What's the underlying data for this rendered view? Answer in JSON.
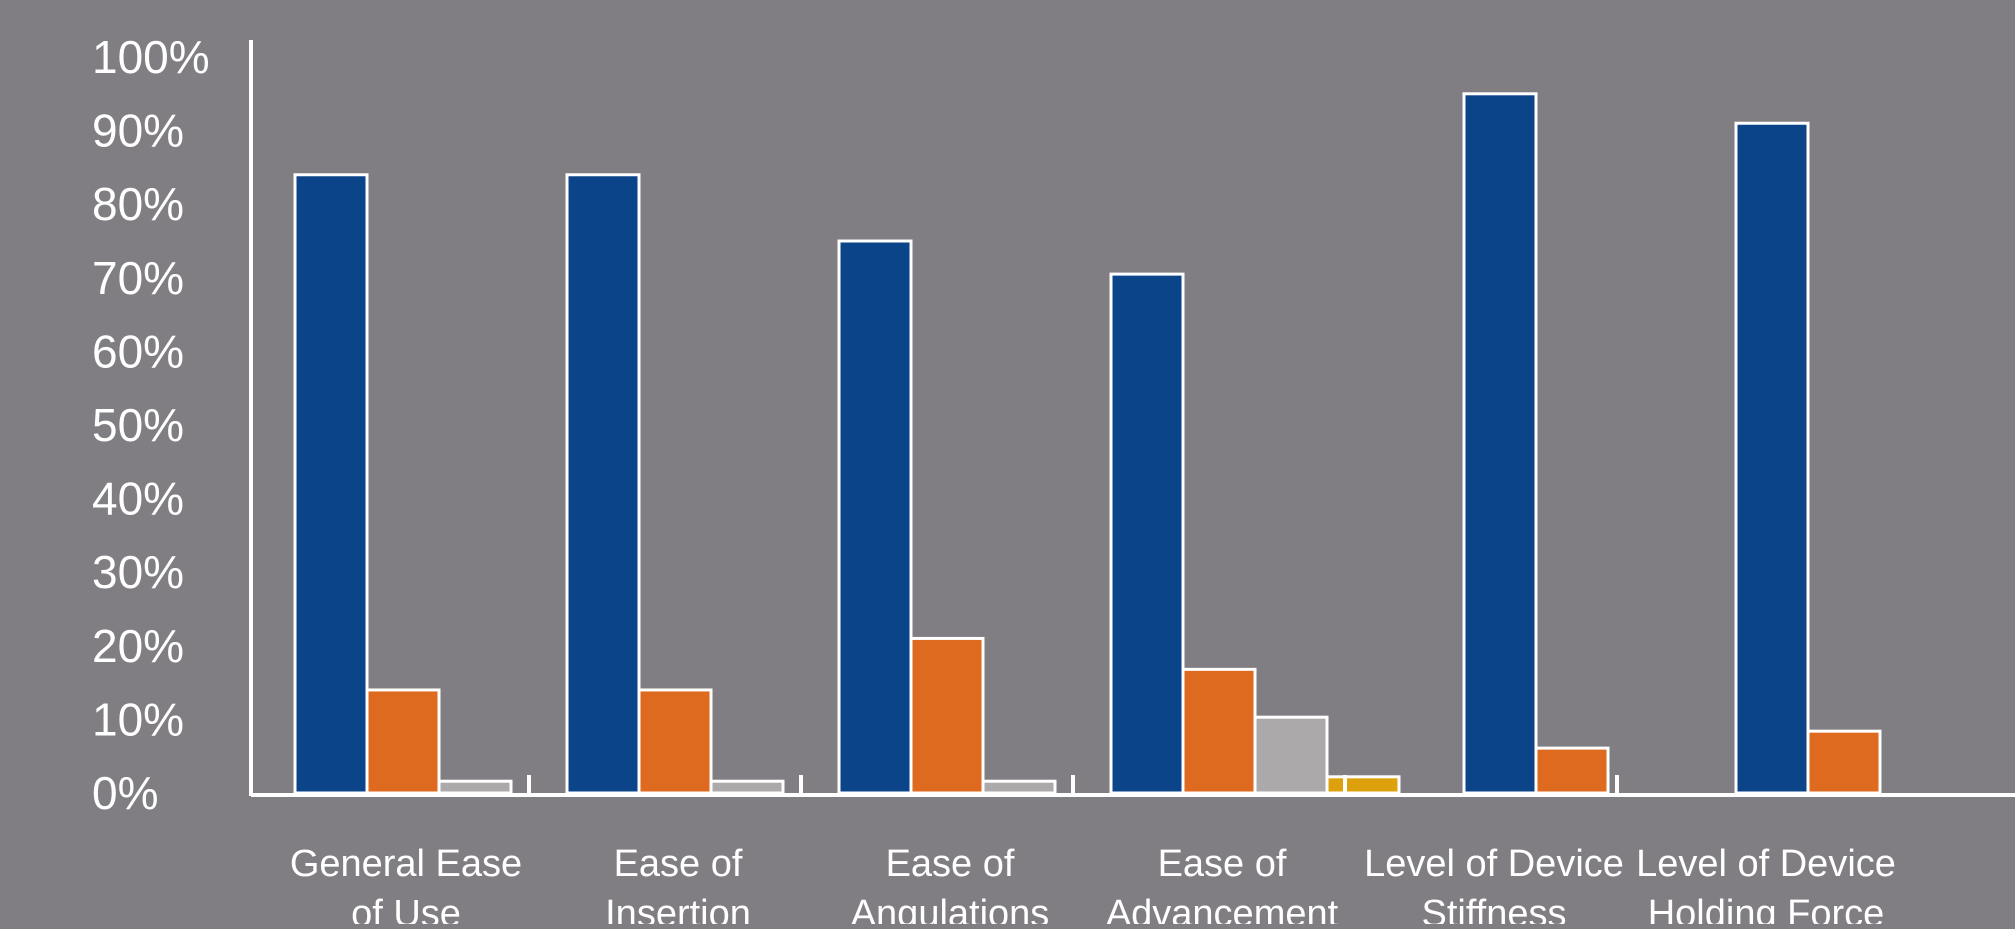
{
  "chart_data": {
    "type": "bar",
    "title": "",
    "xlabel": "",
    "ylabel": "",
    "ylim": [
      0,
      100
    ],
    "y_ticks": [
      "0%",
      "10%",
      "20%",
      "30%",
      "40%",
      "50%",
      "60%",
      "70%",
      "80%",
      "90%",
      "100%"
    ],
    "categories": [
      [
        "General Ease",
        "of Use"
      ],
      [
        "Ease of",
        "Insertion"
      ],
      [
        "Ease of",
        "Angulations"
      ],
      [
        "Ease of",
        "Advancement"
      ],
      [
        "Level of Device",
        "Stiffness"
      ],
      [
        "Level of Device",
        "Holding Force"
      ]
    ],
    "series": [
      {
        "color": "#0b4488",
        "values": [
          84,
          84,
          75,
          70.5,
          95,
          91
        ]
      },
      {
        "color": "#dd6a1f",
        "values": [
          14,
          14,
          21,
          16.8,
          6.1,
          8.4
        ]
      },
      {
        "color": "#aca9ab",
        "values": [
          1.6,
          1.6,
          1.6,
          10.3,
          0,
          0
        ]
      },
      {
        "color": "#dea10e",
        "values": [
          0,
          0,
          0,
          2.2,
          0,
          0
        ]
      }
    ],
    "grid": false,
    "legend": "none"
  }
}
